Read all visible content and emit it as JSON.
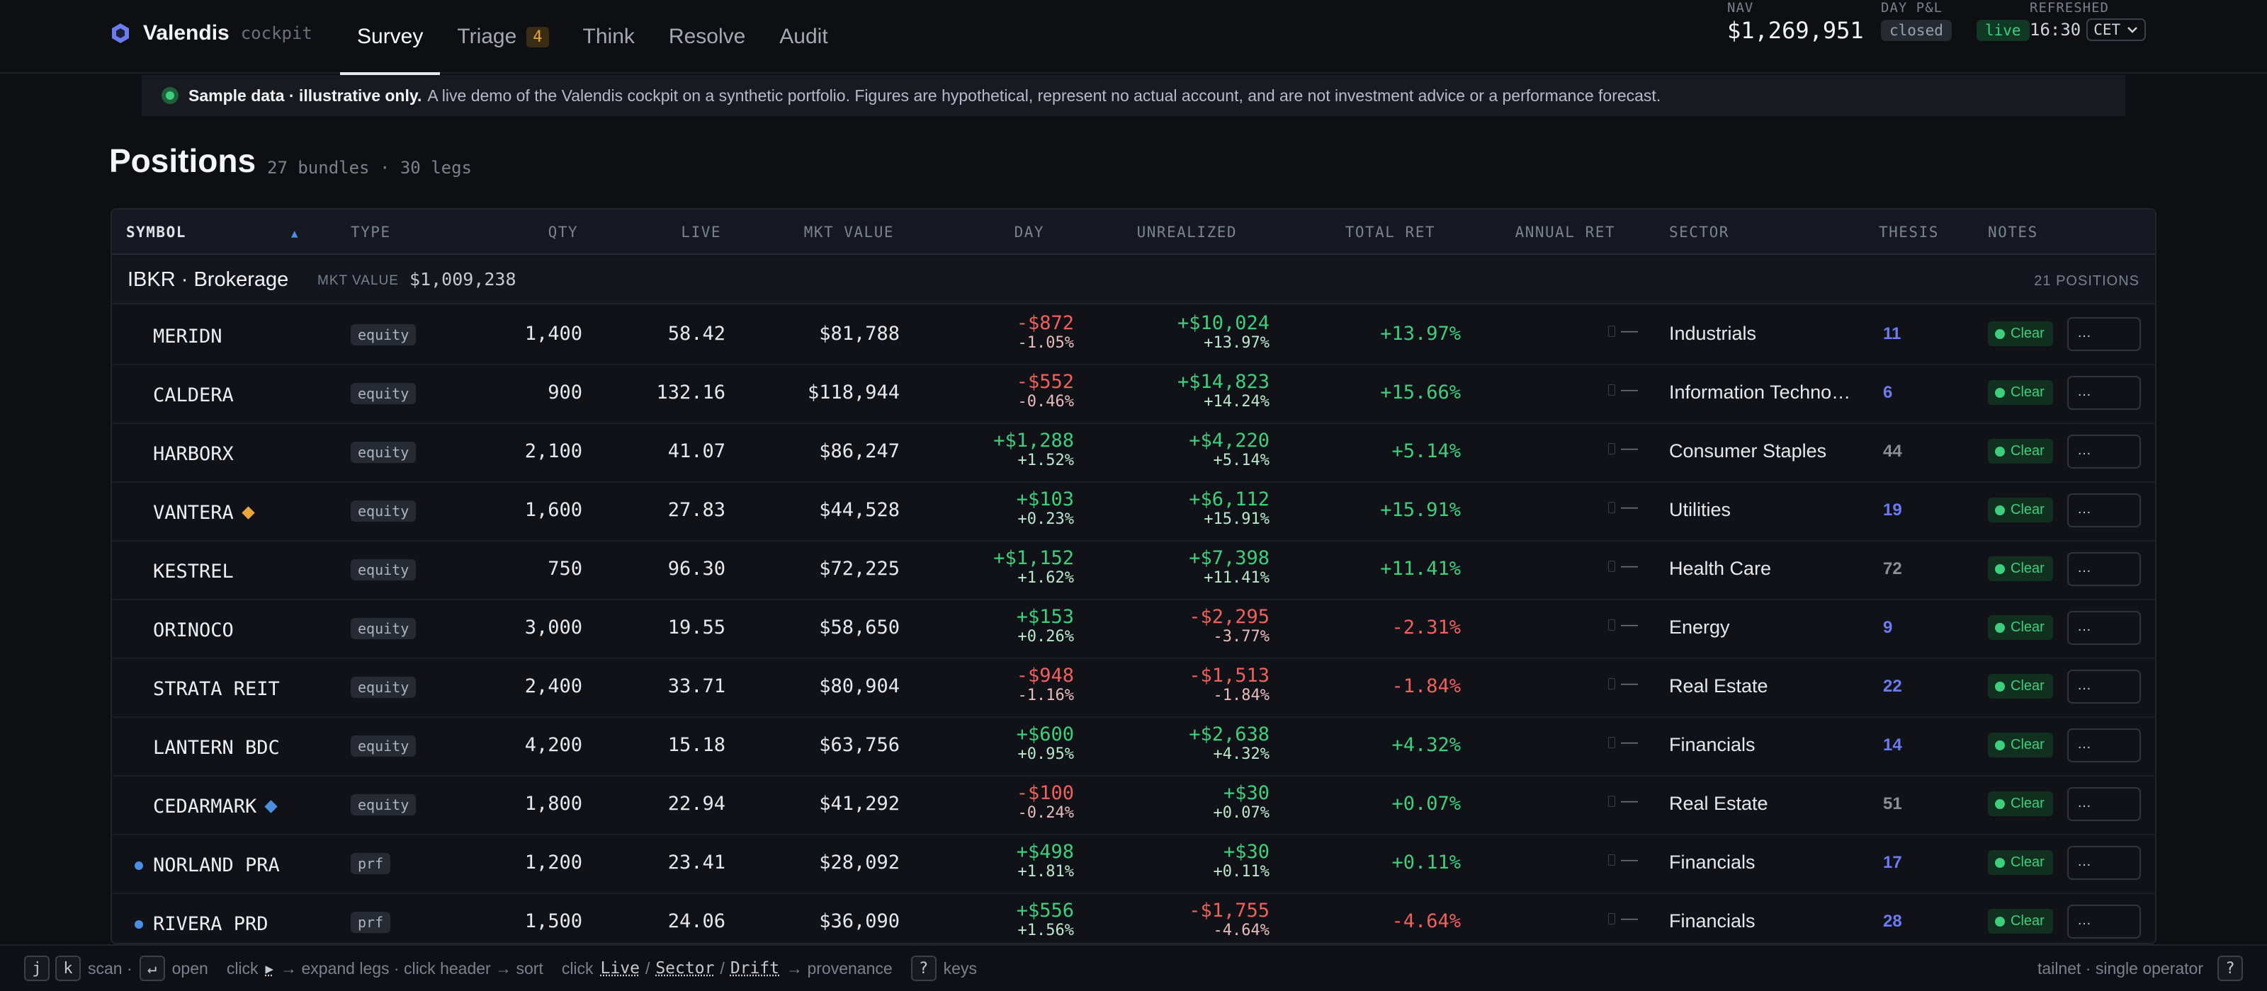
{
  "app": {
    "name": "Valendis",
    "subtitle": "cockpit",
    "accent": "#6b7bf0"
  },
  "nav": {
    "tabs": [
      {
        "label": "Survey",
        "active": true
      },
      {
        "label": "Triage",
        "badge": "4"
      },
      {
        "label": "Think"
      },
      {
        "label": "Resolve"
      },
      {
        "label": "Audit"
      }
    ]
  },
  "status": {
    "nav_label": "NAV",
    "nav_value": "$1,269,951",
    "pnl_label": "DAY P&L",
    "pnl_value": "closed",
    "live_label": "live",
    "refreshed_label": "REFRESHED",
    "refreshed_time": "16:30",
    "timezone": "CET"
  },
  "notice": {
    "bold": "Sample data · illustrative only.",
    "text": "A live demo of the Valendis cockpit on a synthetic portfolio. Figures are hypothetical, represent no actual account, and are not investment advice or a performance forecast."
  },
  "page": {
    "title": "Positions",
    "subtitle": "27 bundles · 30 legs"
  },
  "table": {
    "headers": {
      "symbol": "SYMBOL",
      "type": "TYPE",
      "qty": "QTY",
      "live": "LIVE",
      "mkt_value": "MKT VALUE",
      "day": "DAY",
      "unrealized": "UNREALIZED",
      "total_ret": "TOTAL RET",
      "annual_ret": "ANNUAL RET",
      "sector": "SECTOR",
      "thesis": "THESIS",
      "notes": "NOTES"
    },
    "sort_indicator": "▲",
    "group": {
      "name": "IBKR · Brokerage",
      "mv_label": "MKT VALUE",
      "mv": "$1,009,238",
      "count": "21 POSITIONS"
    },
    "annual_placeholder": "—",
    "status_label": "Clear",
    "notes_placeholder": "…",
    "rows": [
      {
        "symbol": "MERIDN",
        "type": "equity",
        "qty": "1,400",
        "live": "58.42",
        "mkt": "$81,788",
        "day_amt": "-$872",
        "day_pct": "-1.05%",
        "unr_amt": "+$10,024",
        "unr_pct": "+13.97%",
        "total": "+13.97%",
        "sector": "Industrials",
        "thesis": "11",
        "thesis_color": "#6b7bf0"
      },
      {
        "symbol": "CALDERA",
        "type": "equity",
        "qty": "900",
        "live": "132.16",
        "mkt": "$118,944",
        "day_amt": "-$552",
        "day_pct": "-0.46%",
        "unr_amt": "+$14,823",
        "unr_pct": "+14.24%",
        "total": "+15.66%",
        "sector": "Information Techno…",
        "thesis": "6",
        "thesis_color": "#6b7bf0"
      },
      {
        "symbol": "HARBORX",
        "type": "equity",
        "qty": "2,100",
        "live": "41.07",
        "mkt": "$86,247",
        "day_amt": "+$1,288",
        "day_pct": "+1.52%",
        "unr_amt": "+$4,220",
        "unr_pct": "+5.14%",
        "total": "+5.14%",
        "sector": "Consumer Staples",
        "thesis": "44",
        "thesis_color": "#8a8f99"
      },
      {
        "symbol": "VANTERA",
        "type": "equity",
        "qty": "1,600",
        "live": "27.83",
        "mkt": "$44,528",
        "day_amt": "+$103",
        "day_pct": "+0.23%",
        "unr_amt": "+$6,112",
        "unr_pct": "+15.91%",
        "total": "+15.91%",
        "sector": "Utilities",
        "thesis": "19",
        "thesis_color": "#6b7bf0",
        "marker": "diamond",
        "marker_color": "#e9a43c"
      },
      {
        "symbol": "KESTREL",
        "type": "equity",
        "qty": "750",
        "live": "96.30",
        "mkt": "$72,225",
        "day_amt": "+$1,152",
        "day_pct": "+1.62%",
        "unr_amt": "+$7,398",
        "unr_pct": "+11.41%",
        "total": "+11.41%",
        "sector": "Health Care",
        "thesis": "72",
        "thesis_color": "#8a8f99"
      },
      {
        "symbol": "ORINOCO",
        "type": "equity",
        "qty": "3,000",
        "live": "19.55",
        "mkt": "$58,650",
        "day_amt": "+$153",
        "day_pct": "+0.26%",
        "unr_amt": "-$2,295",
        "unr_pct": "-3.77%",
        "total": "-2.31%",
        "sector": "Energy",
        "thesis": "9",
        "thesis_color": "#6b7bf0"
      },
      {
        "symbol": "STRATA REIT",
        "type": "equity",
        "qty": "2,400",
        "live": "33.71",
        "mkt": "$80,904",
        "day_amt": "-$948",
        "day_pct": "-1.16%",
        "unr_amt": "-$1,513",
        "unr_pct": "-1.84%",
        "total": "-1.84%",
        "sector": "Real Estate",
        "thesis": "22",
        "thesis_color": "#6b7bf0"
      },
      {
        "symbol": "LANTERN BDC",
        "type": "equity",
        "qty": "4,200",
        "live": "15.18",
        "mkt": "$63,756",
        "day_amt": "+$600",
        "day_pct": "+0.95%",
        "unr_amt": "+$2,638",
        "unr_pct": "+4.32%",
        "total": "+4.32%",
        "sector": "Financials",
        "thesis": "14",
        "thesis_color": "#6b7bf0"
      },
      {
        "symbol": "CEDARMARK",
        "type": "equity",
        "qty": "1,800",
        "live": "22.94",
        "mkt": "$41,292",
        "day_amt": "-$100",
        "day_pct": "-0.24%",
        "unr_amt": "+$30",
        "unr_pct": "+0.07%",
        "total": "+0.07%",
        "sector": "Real Estate",
        "thesis": "51",
        "thesis_color": "#8a8f99",
        "marker": "diamond",
        "marker_color": "#4c8fe0"
      },
      {
        "symbol": "NORLAND PRA",
        "type": "prf",
        "qty": "1,200",
        "live": "23.41",
        "mkt": "$28,092",
        "day_amt": "+$498",
        "day_pct": "+1.81%",
        "unr_amt": "+$30",
        "unr_pct": "+0.11%",
        "total": "+0.11%",
        "sector": "Financials",
        "thesis": "17",
        "thesis_color": "#6b7bf0",
        "dot": true
      },
      {
        "symbol": "RIVERA PRD",
        "type": "prf",
        "qty": "1,500",
        "live": "24.06",
        "mkt": "$36,090",
        "day_amt": "+$556",
        "day_pct": "+1.56%",
        "unr_amt": "-$1,755",
        "unr_pct": "-4.64%",
        "total": "-4.64%",
        "sector": "Financials",
        "thesis": "28",
        "thesis_color": "#6b7bf0",
        "dot": true
      }
    ]
  },
  "footer": {
    "k1": "j",
    "k2": "k",
    "scan": "scan ·",
    "k3": "↵",
    "open": "open",
    "expand_pre": "click",
    "expand_glyph": "▸",
    "expand_post": "→ expand legs · click header → sort",
    "prov_pre": "click",
    "prov_live": "Live",
    "prov_sep1": "/",
    "prov_sector": "Sector",
    "prov_sep2": "/",
    "prov_drift": "Drift",
    "prov_post": "→ provenance",
    "k4": "?",
    "keys": "keys",
    "right_text": "tailnet · single operator",
    "k5": "?"
  }
}
